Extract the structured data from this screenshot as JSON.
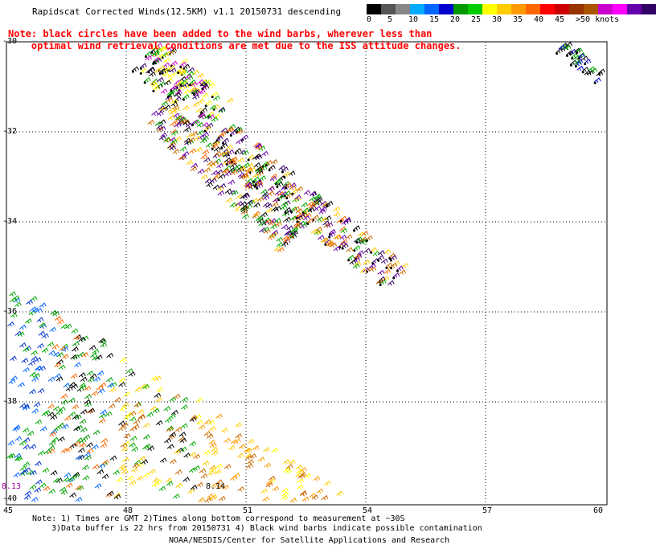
{
  "title": "Rapidscat Corrected Winds(12.5KM) v1.1 20150731 descending",
  "note": {
    "line1": "Note: black circles have been added to the wind barbs, wherever less than",
    "line2": "optimal wind retrieval conditions are met due to the ISS attitude changes."
  },
  "legend": {
    "colors": [
      "#000000",
      "#555555",
      "#888888",
      "#00aaff",
      "#0066ff",
      "#0000cc",
      "#009900",
      "#00cc00",
      "#ffff00",
      "#ffcc00",
      "#ff9900",
      "#ff6600",
      "#ff0000",
      "#cc0000",
      "#993300",
      "#aa5500",
      "#cc00cc",
      "#ff00ff",
      "#6600aa",
      "#330066"
    ],
    "labels": [
      "0",
      "5",
      "10",
      "15",
      "20",
      "25",
      "30",
      "35",
      "40",
      "45",
      ">50 knots"
    ]
  },
  "axes": {
    "lat_labels": [
      "-30",
      "-32",
      "-34",
      "-36",
      "-38",
      "-40"
    ],
    "lon_labels": [
      "45",
      "48",
      "51",
      "54",
      "57",
      "60"
    ]
  },
  "time_labels": [
    "8.13",
    "8.14"
  ],
  "footer": {
    "line1": "Note: 1) Times are GMT 2)Times along bottom correspond to measurement at ~30S",
    "line2": "3)Data buffer is 22 hrs from 20150731 4) Black wind barbs indicate possible contamination",
    "line3": "NOAA/NESDIS/Center for Satellite Applications and Research"
  },
  "swaths": [
    {
      "name": "north-narrow-swath",
      "colors": [
        "#ffff00",
        "#ffcc00",
        "#00aa00",
        "#000000",
        "#cc00cc",
        "#330066"
      ]
    },
    {
      "name": "middle-swath",
      "colors": [
        "#00aa00",
        "#ffcc00",
        "#cc6600",
        "#ff6600",
        "#330066",
        "#6600aa",
        "#000000"
      ]
    },
    {
      "name": "southwest-wide-swath",
      "colors": [
        "#0033cc",
        "#0066ff",
        "#00aa00",
        "#009900",
        "#ffcc00",
        "#ffff00",
        "#ff9900",
        "#000000",
        "#cc6600",
        "#cc00cc"
      ]
    },
    {
      "name": "northeast-corner-swath",
      "colors": [
        "#00aa00",
        "#0000cc",
        "#000000"
      ]
    }
  ]
}
